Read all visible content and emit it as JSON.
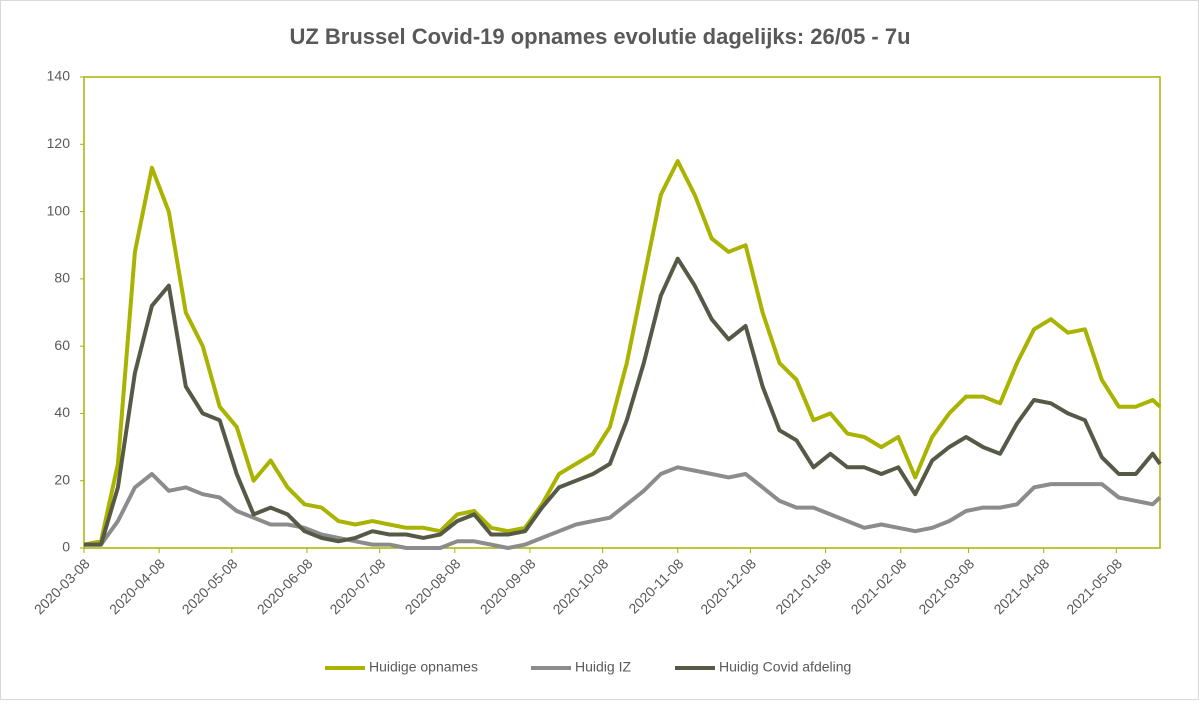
{
  "chart_data": {
    "type": "line",
    "title": "UZ Brussel Covid-19 opnames evolutie dagelijks: 26/05 - 7u",
    "x": [
      "2020-03-08",
      "2020-03-15",
      "2020-03-22",
      "2020-03-29",
      "2020-04-05",
      "2020-04-12",
      "2020-04-19",
      "2020-04-26",
      "2020-05-03",
      "2020-05-10",
      "2020-05-17",
      "2020-05-24",
      "2020-05-31",
      "2020-06-07",
      "2020-06-14",
      "2020-06-21",
      "2020-06-28",
      "2020-07-05",
      "2020-07-12",
      "2020-07-19",
      "2020-07-26",
      "2020-08-02",
      "2020-08-09",
      "2020-08-16",
      "2020-08-23",
      "2020-08-30",
      "2020-09-06",
      "2020-09-13",
      "2020-09-20",
      "2020-09-27",
      "2020-10-04",
      "2020-10-11",
      "2020-10-18",
      "2020-10-25",
      "2020-11-01",
      "2020-11-08",
      "2020-11-15",
      "2020-11-22",
      "2020-11-29",
      "2020-12-06",
      "2020-12-13",
      "2020-12-20",
      "2020-12-27",
      "2021-01-03",
      "2021-01-10",
      "2021-01-17",
      "2021-01-24",
      "2021-01-31",
      "2021-02-07",
      "2021-02-14",
      "2021-02-21",
      "2021-02-28",
      "2021-03-07",
      "2021-03-14",
      "2021-03-21",
      "2021-03-28",
      "2021-04-04",
      "2021-04-11",
      "2021-04-18",
      "2021-04-25",
      "2021-05-02",
      "2021-05-09",
      "2021-05-16",
      "2021-05-23",
      "2021-05-26"
    ],
    "series": [
      {
        "name": "Huidige opnames",
        "color": "#a9b300",
        "values": [
          1,
          2,
          25,
          88,
          113,
          100,
          70,
          60,
          42,
          36,
          20,
          26,
          18,
          13,
          12,
          8,
          7,
          8,
          7,
          6,
          6,
          5,
          10,
          11,
          6,
          5,
          6,
          13,
          22,
          25,
          28,
          36,
          55,
          80,
          105,
          115,
          105,
          92,
          88,
          90,
          70,
          55,
          50,
          38,
          40,
          34,
          33,
          30,
          33,
          21,
          33,
          40,
          45,
          45,
          43,
          55,
          65,
          68,
          64,
          65,
          50,
          42,
          42,
          44,
          42
        ]
      },
      {
        "name": "Huidig IZ",
        "color": "#8c8c8c",
        "values": [
          1,
          1,
          8,
          18,
          22,
          17,
          18,
          16,
          15,
          11,
          9,
          7,
          7,
          6,
          4,
          3,
          2,
          1,
          1,
          0,
          0,
          0,
          2,
          2,
          1,
          0,
          1,
          3,
          5,
          7,
          8,
          9,
          13,
          17,
          22,
          24,
          23,
          22,
          21,
          22,
          18,
          14,
          12,
          12,
          10,
          8,
          6,
          7,
          6,
          5,
          6,
          8,
          11,
          12,
          12,
          13,
          18,
          19,
          19,
          19,
          19,
          15,
          14,
          13,
          15
        ]
      },
      {
        "name": "Huidig Covid afdeling",
        "color": "#555a47",
        "values": [
          1,
          1,
          18,
          52,
          72,
          78,
          48,
          40,
          38,
          22,
          10,
          12,
          10,
          5,
          3,
          2,
          3,
          5,
          4,
          4,
          3,
          4,
          8,
          10,
          4,
          4,
          5,
          12,
          18,
          20,
          22,
          25,
          38,
          55,
          75,
          86,
          78,
          68,
          62,
          66,
          48,
          35,
          32,
          24,
          28,
          24,
          24,
          22,
          24,
          16,
          26,
          30,
          33,
          30,
          28,
          37,
          44,
          43,
          40,
          38,
          27,
          22,
          22,
          28,
          25
        ]
      }
    ],
    "xlim": [
      "2020-03-08",
      "2021-05-26"
    ],
    "xticks": [
      "2020-03-08",
      "2020-04-08",
      "2020-05-08",
      "2020-06-08",
      "2020-07-08",
      "2020-08-08",
      "2020-09-08",
      "2020-10-08",
      "2020-11-08",
      "2020-12-08",
      "2021-01-08",
      "2021-02-08",
      "2021-03-08",
      "2021-04-08",
      "2021-05-08"
    ],
    "ylim": [
      0,
      140
    ],
    "yticks": [
      0,
      20,
      40,
      60,
      80,
      100,
      120,
      140
    ],
    "grid": false,
    "legend": "bottom"
  }
}
